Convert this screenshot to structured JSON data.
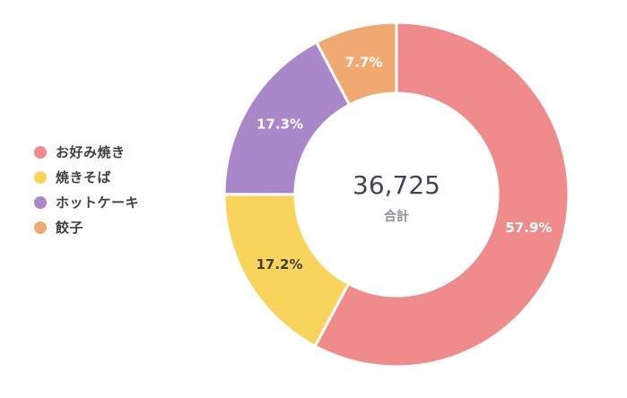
{
  "chart_data": {
    "type": "pie",
    "center": {
      "total": "36,725",
      "caption": "合計"
    },
    "slices": [
      {
        "label": "お好み焼き",
        "value": 57.9,
        "display": "57.9%",
        "color": "#ef8b8b",
        "label_color": "#ffffff"
      },
      {
        "label": "焼きそば",
        "value": 17.2,
        "display": "17.2%",
        "color": "#f8d45c",
        "label_color": "#3f3f46"
      },
      {
        "label": "ホットケーキ",
        "value": 17.3,
        "display": "17.3%",
        "color": "#a987c8",
        "label_color": "#ffffff"
      },
      {
        "label": "餃子",
        "value": 7.7,
        "display": "7.7%",
        "color": "#f0a970",
        "label_color": "#ffffff"
      }
    ],
    "legend_position": "left"
  }
}
